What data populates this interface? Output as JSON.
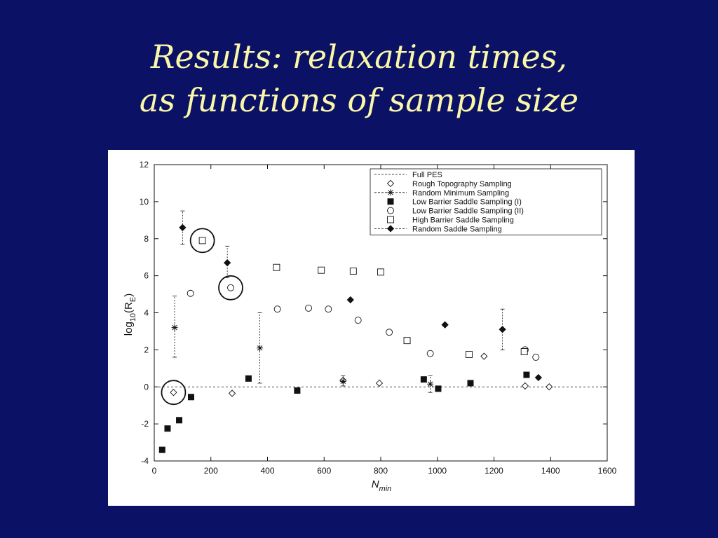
{
  "slide": {
    "title_line1": "Results: relaxation times,",
    "title_line2": "as functions of sample size"
  },
  "colors": {
    "background": "#0b1266",
    "title": "#fbf7a8",
    "plot_bg": "#ffffff",
    "ink": "#111111"
  },
  "chart_data": {
    "type": "scatter",
    "title": "",
    "xlabel": "N",
    "xlabel_sub": "min",
    "ylabel_main": "log",
    "ylabel_sub": "10",
    "ylabel_open": "(R",
    "ylabel_sub2": "E",
    "ylabel_close": ")",
    "xlim": [
      0,
      1600
    ],
    "ylim": [
      -4,
      12
    ],
    "x_ticks": [
      0,
      200,
      400,
      600,
      800,
      1000,
      1200,
      1400,
      1600
    ],
    "y_ticks": [
      -4,
      -2,
      0,
      2,
      4,
      6,
      8,
      10,
      12
    ],
    "grid": false,
    "legend_position": "top-right",
    "reference_line": {
      "series": "Full PES",
      "y": 0
    },
    "series": [
      {
        "name": "Full PES",
        "marker": "dashed-line",
        "points": []
      },
      {
        "name": "Rough Topography Sampling",
        "marker": "diamond-open",
        "points": [
          [
            68,
            -0.3
          ],
          [
            275,
            -0.35
          ],
          [
            667,
            0.35
          ],
          [
            795,
            0.2
          ],
          [
            1165,
            1.65
          ],
          [
            1310,
            0.05
          ],
          [
            1395,
            0.0
          ]
        ]
      },
      {
        "name": "Random Minimum Sampling",
        "marker": "star",
        "errorbars": true,
        "points": [
          [
            72,
            3.2,
            1.6,
            4.9
          ],
          [
            373,
            2.1,
            0.2,
            4.0
          ],
          [
            667,
            0.3,
            0.05,
            0.6
          ],
          [
            975,
            0.15,
            -0.3,
            0.6
          ]
        ]
      },
      {
        "name": "Low Barrier Saddle Sampling (I)",
        "marker": "square-filled",
        "points": [
          [
            28,
            -3.4
          ],
          [
            47,
            -2.25
          ],
          [
            88,
            -1.8
          ],
          [
            130,
            -0.55
          ],
          [
            333,
            0.45
          ],
          [
            505,
            -0.2
          ],
          [
            952,
            0.4
          ],
          [
            1003,
            -0.1
          ],
          [
            1117,
            0.2
          ],
          [
            1315,
            0.65
          ]
        ]
      },
      {
        "name": "Low Barrier Saddle Sampling (II)",
        "marker": "circle-open",
        "points": [
          [
            128,
            5.05
          ],
          [
            270,
            5.35
          ],
          [
            435,
            4.2
          ],
          [
            545,
            4.25
          ],
          [
            615,
            4.2
          ],
          [
            720,
            3.6
          ],
          [
            830,
            2.95
          ],
          [
            975,
            1.8
          ],
          [
            1310,
            2.0
          ],
          [
            1348,
            1.6
          ]
        ]
      },
      {
        "name": "High Barrier Saddle Sampling",
        "marker": "square-open",
        "points": [
          [
            170,
            7.9
          ],
          [
            432,
            6.45
          ],
          [
            590,
            6.3
          ],
          [
            703,
            6.25
          ],
          [
            800,
            6.2
          ],
          [
            893,
            2.5
          ],
          [
            1112,
            1.75
          ],
          [
            1307,
            1.9
          ]
        ]
      },
      {
        "name": "Random Saddle Sampling",
        "marker": "diamond-filled",
        "errorbars": true,
        "points": [
          [
            100,
            8.6,
            7.7,
            9.5
          ],
          [
            258,
            6.7,
            5.9,
            7.6
          ],
          [
            693,
            4.7,
            4.7,
            4.7
          ],
          [
            1027,
            3.35,
            3.35,
            3.35
          ],
          [
            1230,
            3.1,
            2.0,
            4.2
          ],
          [
            1357,
            0.5,
            0.5,
            0.5
          ]
        ]
      }
    ],
    "highlight_circles": [
      {
        "target": "High Barrier Saddle Sampling",
        "x": 170,
        "y": 7.9
      },
      {
        "target": "Low Barrier Saddle Sampling (II)",
        "x": 270,
        "y": 5.35
      },
      {
        "target": "Rough Topography Sampling",
        "x": 68,
        "y": -0.3
      }
    ]
  }
}
